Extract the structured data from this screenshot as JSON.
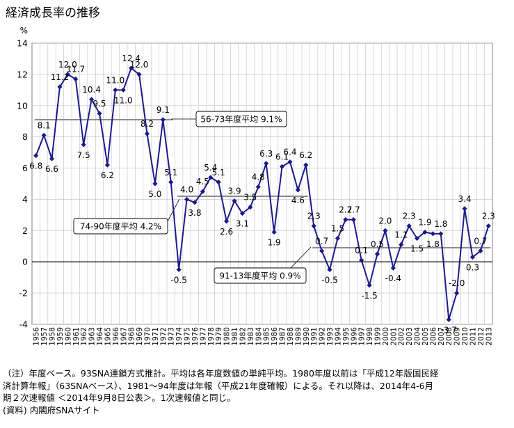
{
  "chart_data": {
    "type": "line",
    "title": "経済成長率の推移",
    "ylabel": "%",
    "xlabel": "",
    "ylim": [
      -4,
      14
    ],
    "yticks": [
      -4,
      -2,
      0,
      2,
      4,
      6,
      8,
      10,
      12,
      14
    ],
    "grid": true,
    "legend": "none",
    "colors": {
      "line": "#1a1a8c",
      "marker": "#1a1a8c",
      "average": "#8c8c8c",
      "grid": "#c0c0c0"
    },
    "x": [
      "1956",
      "1957",
      "1958",
      "1959",
      "1960",
      "1961",
      "1962",
      "1963",
      "1964",
      "1965",
      "1966",
      "1967",
      "1968",
      "1969",
      "1970",
      "1971",
      "1972",
      "1973",
      "1974",
      "1975",
      "1976",
      "1977",
      "1978",
      "1979",
      "1980",
      "1981",
      "1982",
      "1983",
      "1984",
      "1985",
      "1986",
      "1987",
      "1988",
      "1989",
      "1990",
      "1991",
      "1992",
      "1993",
      "1994",
      "1995",
      "1996",
      "1997",
      "1998",
      "1999",
      "2000",
      "2001",
      "2002",
      "2003",
      "2004",
      "2005",
      "2006",
      "2007",
      "2008",
      "2009",
      "2010",
      "2011",
      "2012",
      "2013"
    ],
    "values": [
      6.8,
      8.1,
      6.6,
      11.2,
      12.0,
      11.7,
      7.5,
      10.4,
      9.5,
      6.2,
      11.0,
      11.0,
      12.4,
      12.0,
      8.2,
      5.0,
      9.1,
      5.1,
      -0.5,
      4.0,
      3.8,
      4.5,
      5.4,
      5.1,
      2.6,
      3.9,
      3.1,
      3.5,
      4.8,
      6.3,
      1.9,
      6.1,
      6.4,
      4.6,
      6.2,
      2.3,
      0.7,
      -0.5,
      1.5,
      2.7,
      2.7,
      0.1,
      -1.5,
      0.5,
      2.0,
      -0.4,
      1.1,
      2.3,
      1.5,
      1.9,
      1.8,
      1.8,
      -3.7,
      -2.0,
      3.4,
      0.3,
      0.7,
      2.3
    ],
    "data_labels": [
      {
        "i": 0,
        "text": "6.8"
      },
      {
        "i": 1,
        "text": "8.1"
      },
      {
        "i": 2,
        "text": "6.6"
      },
      {
        "i": 3,
        "text": "11.2"
      },
      {
        "i": 4,
        "text": "12.0"
      },
      {
        "i": 5,
        "text": "11.7"
      },
      {
        "i": 6,
        "text": "7.5"
      },
      {
        "i": 7,
        "text": "10.4"
      },
      {
        "i": 8,
        "text": "9.5"
      },
      {
        "i": 9,
        "text": "6.2"
      },
      {
        "i": 10,
        "text": "11.0"
      },
      {
        "i": 11,
        "text": "11.0"
      },
      {
        "i": 12,
        "text": "12.4"
      },
      {
        "i": 13,
        "text": "12.0"
      },
      {
        "i": 14,
        "text": "8.2"
      },
      {
        "i": 15,
        "text": "5.0"
      },
      {
        "i": 16,
        "text": "9.1"
      },
      {
        "i": 17,
        "text": "5.1"
      },
      {
        "i": 18,
        "text": "-0.5"
      },
      {
        "i": 19,
        "text": "4.0"
      },
      {
        "i": 20,
        "text": "3.8"
      },
      {
        "i": 21,
        "text": "4.5"
      },
      {
        "i": 22,
        "text": "5.4"
      },
      {
        "i": 23,
        "text": "5.1"
      },
      {
        "i": 24,
        "text": "2.6"
      },
      {
        "i": 25,
        "text": "3.9"
      },
      {
        "i": 26,
        "text": "3.1"
      },
      {
        "i": 27,
        "text": "3.5"
      },
      {
        "i": 28,
        "text": "4.8"
      },
      {
        "i": 29,
        "text": "6.3"
      },
      {
        "i": 30,
        "text": "1.9"
      },
      {
        "i": 31,
        "text": "6.1"
      },
      {
        "i": 32,
        "text": "6.4"
      },
      {
        "i": 33,
        "text": "4.6"
      },
      {
        "i": 34,
        "text": "6.2"
      },
      {
        "i": 35,
        "text": "2.3"
      },
      {
        "i": 36,
        "text": "0.7"
      },
      {
        "i": 37,
        "text": "-0.5"
      },
      {
        "i": 38,
        "text": "1.5"
      },
      {
        "i": 39,
        "text": "2.7"
      },
      {
        "i": 40,
        "text": "2.7"
      },
      {
        "i": 41,
        "text": "0.1"
      },
      {
        "i": 42,
        "text": "-1.5"
      },
      {
        "i": 43,
        "text": "0.5"
      },
      {
        "i": 44,
        "text": "2.0"
      },
      {
        "i": 45,
        "text": "-0.4"
      },
      {
        "i": 46,
        "text": "1.1"
      },
      {
        "i": 47,
        "text": "2.3"
      },
      {
        "i": 48,
        "text": "1.5"
      },
      {
        "i": 49,
        "text": "1.9"
      },
      {
        "i": 50,
        "text": "1.8"
      },
      {
        "i": 51,
        "text": "1.8"
      },
      {
        "i": 52,
        "text": "-3.7"
      },
      {
        "i": 53,
        "text": "-2.0"
      },
      {
        "i": 54,
        "text": "3.4"
      },
      {
        "i": 55,
        "text": "0.3"
      },
      {
        "i": 56,
        "text": "0.7"
      },
      {
        "i": 57,
        "text": "2.3"
      }
    ],
    "averages": [
      {
        "label": "56-73年度平均 9.1%",
        "value": 9.1,
        "from": "1956",
        "to": "1973"
      },
      {
        "label": "74-90年度平均 4.2%",
        "value": 4.2,
        "from": "1974",
        "to": "1990"
      },
      {
        "label": "91-13年度平均 0.9%",
        "value": 0.9,
        "from": "1991",
        "to": "2013"
      }
    ]
  },
  "notes": [
    "（注）年度ベース。93SNA連鎖方式推計。平均は各年度数値の単純平均。1980年度以前は「平成12年版国民経",
    "済計算年報」（63SNAベース）、1981～94年度は年報（平成21年度確報）による。それ以降は、2014年4-6月",
    "期２次速報値 ＜2014年9月8日公表＞。1次速報値と同じ。",
    "(資料) 内閣府SNAサイト"
  ]
}
